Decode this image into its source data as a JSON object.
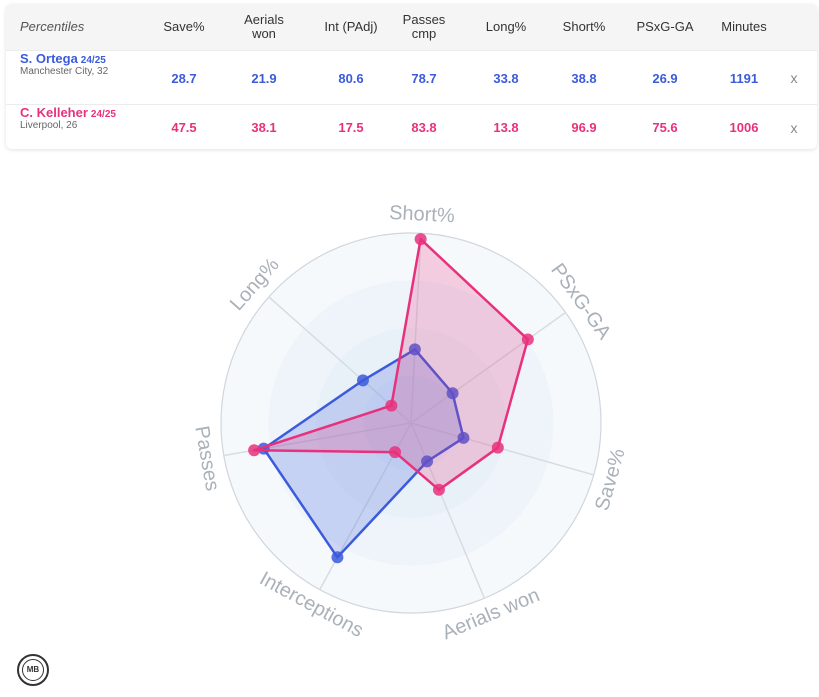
{
  "table": {
    "header": [
      "Percentiles",
      "Save%",
      "Aerials won",
      "Int (PAdj)",
      "Passes cmp",
      "Long%",
      "Short%",
      "PSxG-GA",
      "Minutes"
    ],
    "players": [
      {
        "name": "S. Ortega",
        "season": "24/25",
        "team": "Manchester City, 32",
        "values": [
          "28.7",
          "21.9",
          "80.6",
          "78.7",
          "33.8",
          "38.8",
          "26.9",
          "1191"
        ],
        "remove_label": "x"
      },
      {
        "name": "C. Kelleher",
        "season": "24/25",
        "team": "Liverpool, 26",
        "values": [
          "47.5",
          "38.1",
          "17.5",
          "83.8",
          "13.8",
          "96.9",
          "75.6",
          "1006"
        ],
        "remove_label": "x"
      }
    ]
  },
  "chart_data": {
    "type": "radar",
    "axes": [
      "Short%",
      "PSxG-GA",
      "Save%",
      "Aerials won",
      "Interceptions",
      "Passes",
      "Long%"
    ],
    "range": [
      0,
      100
    ],
    "rings": [
      25,
      50,
      75,
      100
    ],
    "series": [
      {
        "name": "S. Ortega",
        "color": "#3b5bdb",
        "values": [
          38.8,
          26.9,
          28.7,
          21.9,
          80.6,
          78.7,
          33.8
        ]
      },
      {
        "name": "C. Kelleher",
        "color": "#e8317d",
        "values": [
          96.9,
          75.6,
          47.5,
          38.1,
          17.5,
          83.8,
          13.8
        ]
      }
    ]
  },
  "logo": {
    "text": "MB",
    "icon": "mb-logo-icon"
  }
}
